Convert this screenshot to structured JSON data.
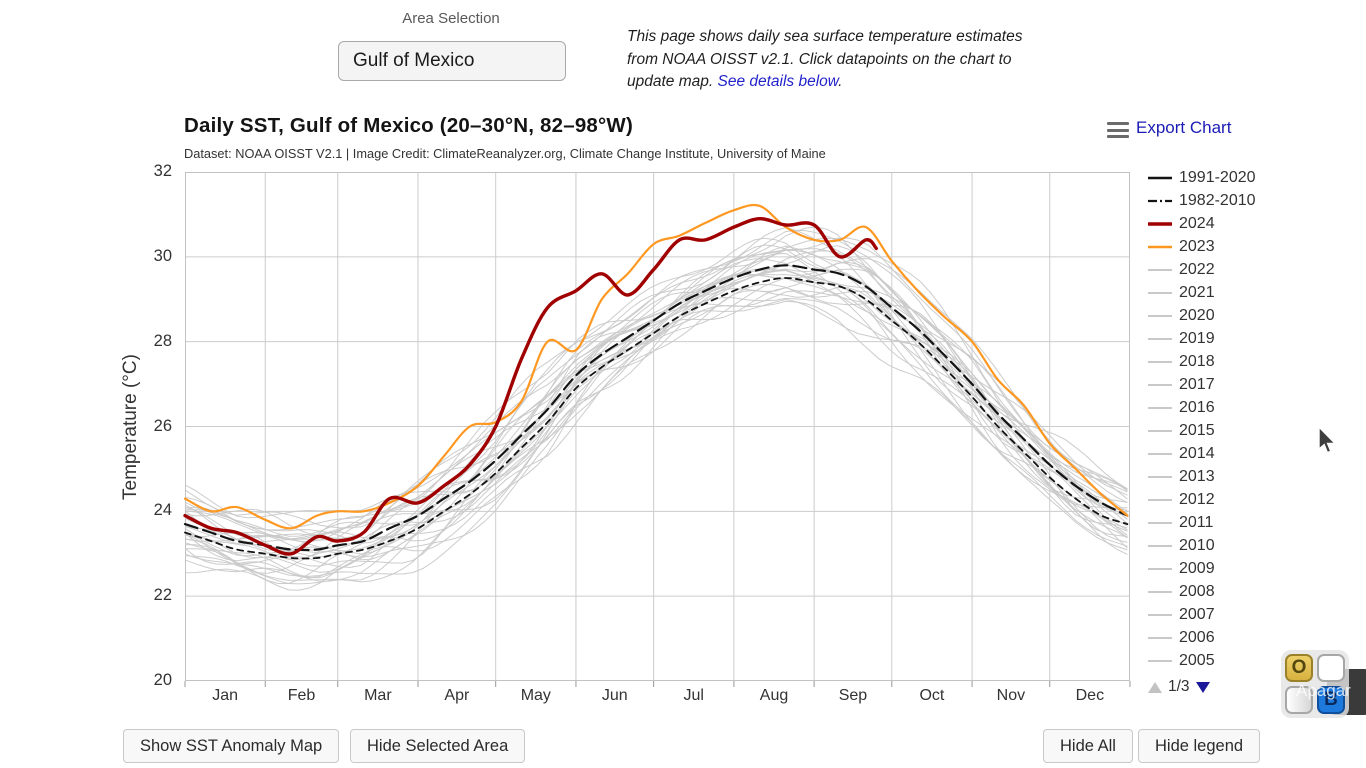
{
  "area_selection": {
    "label": "Area Selection",
    "value": "Gulf of Mexico"
  },
  "intro": {
    "text_before_link": "This page shows daily sea surface temperature estimates from NOAA OISST v2.1. Click datapoints on the chart to update map. ",
    "link_text": "See details below",
    "text_after_link": "."
  },
  "chart_header": {
    "title": "Daily SST, Gulf of Mexico (20–30°N, 82–98°W)",
    "credit": "Dataset: NOAA OISST V2.1 | Image Credit: ClimateReanalyzer.org, Climate Change Institute, University of Maine",
    "export_label": "Export Chart"
  },
  "chart_data": {
    "type": "line",
    "title": "Daily SST, Gulf of Mexico (20–30°N, 82–98°W)",
    "xlabel": "",
    "ylabel": "Temperature (°C)",
    "ylim": [
      20,
      32
    ],
    "yticks": [
      20,
      22,
      24,
      26,
      28,
      30,
      32
    ],
    "grid": true,
    "legend_position": "right",
    "month_labels": [
      "Jan",
      "Feb",
      "Mar",
      "Apr",
      "May",
      "Jun",
      "Jul",
      "Aug",
      "Sep",
      "Oct",
      "Nov",
      "Dec"
    ],
    "month_start_days": [
      0,
      31,
      59,
      90,
      120,
      151,
      181,
      212,
      243,
      273,
      304,
      334,
      365
    ],
    "sample_days": [
      1,
      11,
      21,
      32,
      42,
      52,
      60,
      70,
      80,
      91,
      101,
      111,
      121,
      131,
      141,
      152,
      162,
      172,
      182,
      192,
      202,
      213,
      223,
      233,
      244,
      254,
      264,
      274,
      284,
      294,
      305,
      315,
      325,
      335,
      345,
      355,
      365
    ],
    "series": [
      {
        "name": "1991-2020",
        "color": "#141414",
        "dash": "long-dash",
        "width": 2.2,
        "values": [
          23.7,
          23.5,
          23.3,
          23.2,
          23.1,
          23.1,
          23.2,
          23.3,
          23.6,
          23.9,
          24.3,
          24.7,
          25.2,
          25.8,
          26.4,
          27.2,
          27.7,
          28.1,
          28.5,
          28.9,
          29.2,
          29.5,
          29.7,
          29.8,
          29.7,
          29.6,
          29.3,
          28.8,
          28.3,
          27.7,
          27.0,
          26.3,
          25.7,
          25.1,
          24.6,
          24.2,
          23.9
        ]
      },
      {
        "name": "1982-2010",
        "color": "#141414",
        "dash": "dash",
        "width": 1.8,
        "values": [
          23.5,
          23.3,
          23.1,
          23.0,
          22.9,
          22.9,
          23.0,
          23.1,
          23.3,
          23.6,
          24.0,
          24.4,
          24.9,
          25.5,
          26.1,
          26.9,
          27.4,
          27.8,
          28.2,
          28.6,
          28.9,
          29.2,
          29.4,
          29.5,
          29.4,
          29.3,
          29.0,
          28.5,
          28.0,
          27.4,
          26.7,
          26.0,
          25.4,
          24.8,
          24.3,
          23.9,
          23.7
        ]
      },
      {
        "name": "2023",
        "color": "#ff9821",
        "dash": "solid",
        "width": 2.2,
        "values": [
          24.3,
          24.0,
          24.1,
          23.8,
          23.6,
          23.9,
          24.0,
          24.0,
          24.2,
          24.6,
          25.3,
          26.0,
          26.1,
          26.6,
          28.0,
          27.8,
          29.0,
          29.6,
          30.3,
          30.5,
          30.8,
          31.1,
          31.2,
          30.7,
          30.4,
          30.4,
          30.7,
          29.9,
          29.2,
          28.6,
          28.0,
          27.1,
          26.5,
          25.6,
          25.0,
          24.4,
          23.9
        ]
      },
      {
        "name": "2024",
        "color": "#a00000",
        "dash": "solid",
        "width": 3.4,
        "days": [
          1,
          11,
          21,
          32,
          42,
          52,
          60,
          70,
          80,
          91,
          101,
          111,
          121,
          131,
          141,
          152,
          162,
          172,
          182,
          192,
          202,
          213,
          223,
          233,
          244,
          254,
          264,
          268
        ],
        "values": [
          23.9,
          23.6,
          23.5,
          23.2,
          23.0,
          23.4,
          23.3,
          23.5,
          24.3,
          24.2,
          24.6,
          25.1,
          26.0,
          27.6,
          28.8,
          29.2,
          29.6,
          29.1,
          29.7,
          30.4,
          30.4,
          30.7,
          30.9,
          30.75,
          30.75,
          30.0,
          30.4,
          30.2
        ]
      }
    ],
    "background_years": {
      "label_years": [
        "2022",
        "2021",
        "2020",
        "2019",
        "2018",
        "2017",
        "2016",
        "2015",
        "2014",
        "2013",
        "2012",
        "2011",
        "2010",
        "2009",
        "2008",
        "2007",
        "2006",
        "2005"
      ],
      "color": "#c9c9c9",
      "width": 1,
      "band_offset_range": [
        -1.3,
        1.0
      ],
      "rendered_line_count": 30
    }
  },
  "legend": {
    "page": "1/3",
    "entries": [
      {
        "label": "1991-2020",
        "color": "#141414",
        "dash": "solid",
        "width": 2.6
      },
      {
        "label": "1982-2010",
        "color": "#141414",
        "dash": "dashdot",
        "width": 2.2
      },
      {
        "label": "2024",
        "color": "#a00000",
        "dash": "solid",
        "width": 3.4
      },
      {
        "label": "2023",
        "color": "#ff9821",
        "dash": "solid",
        "width": 2.6
      },
      {
        "label": "2022",
        "color": "#c9c9c9",
        "dash": "solid",
        "width": 2
      },
      {
        "label": "2021",
        "color": "#c9c9c9",
        "dash": "solid",
        "width": 2
      },
      {
        "label": "2020",
        "color": "#c9c9c9",
        "dash": "solid",
        "width": 2
      },
      {
        "label": "2019",
        "color": "#c9c9c9",
        "dash": "solid",
        "width": 2
      },
      {
        "label": "2018",
        "color": "#c9c9c9",
        "dash": "solid",
        "width": 2
      },
      {
        "label": "2017",
        "color": "#c9c9c9",
        "dash": "solid",
        "width": 2
      },
      {
        "label": "2016",
        "color": "#c9c9c9",
        "dash": "solid",
        "width": 2
      },
      {
        "label": "2015",
        "color": "#c9c9c9",
        "dash": "solid",
        "width": 2
      },
      {
        "label": "2014",
        "color": "#c9c9c9",
        "dash": "solid",
        "width": 2
      },
      {
        "label": "2013",
        "color": "#c9c9c9",
        "dash": "solid",
        "width": 2
      },
      {
        "label": "2012",
        "color": "#c9c9c9",
        "dash": "solid",
        "width": 2
      },
      {
        "label": "2011",
        "color": "#c9c9c9",
        "dash": "solid",
        "width": 2
      },
      {
        "label": "2010",
        "color": "#c9c9c9",
        "dash": "solid",
        "width": 2
      },
      {
        "label": "2009",
        "color": "#c9c9c9",
        "dash": "solid",
        "width": 2
      },
      {
        "label": "2008",
        "color": "#c9c9c9",
        "dash": "solid",
        "width": 2
      },
      {
        "label": "2007",
        "color": "#c9c9c9",
        "dash": "solid",
        "width": 2
      },
      {
        "label": "2006",
        "color": "#c9c9c9",
        "dash": "solid",
        "width": 2
      },
      {
        "label": "2005",
        "color": "#c9c9c9",
        "dash": "solid",
        "width": 2
      }
    ]
  },
  "buttons": {
    "show_anomaly_map": "Show SST Anomaly Map",
    "hide_selected_area": "Hide Selected Area",
    "hide_all": "Hide All",
    "hide_legend": "Hide legend"
  },
  "overlay_widget": {
    "tooltip": "Apagar",
    "tiles": [
      {
        "letter": "O"
      },
      {
        "letter": ""
      },
      {
        "letter": ""
      },
      {
        "letter": "B"
      }
    ]
  }
}
